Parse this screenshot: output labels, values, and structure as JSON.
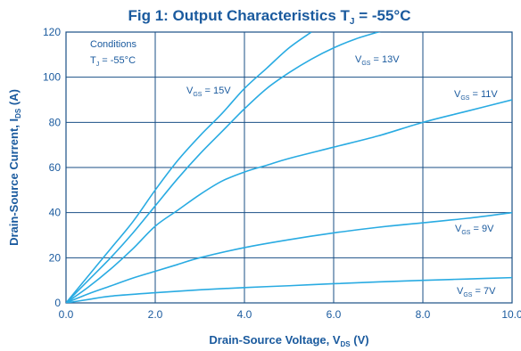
{
  "colors": {
    "title": "#1a5a9e",
    "grid": "#1a4f86",
    "curve": "#29abe2",
    "text": "#1a5a9e"
  },
  "chart_data": {
    "type": "line",
    "title": {
      "main": "Fig 1: Output Characteristics T",
      "sub": "J",
      "suffix": " = -55°C"
    },
    "xlabel": {
      "main": "Drain-Source Voltage, V",
      "sub": "DS",
      "suffix": " (V)"
    },
    "ylabel": {
      "main": "Drain-Source Current, I",
      "sub": "DS",
      "suffix": " (A)"
    },
    "xlim": [
      0,
      10
    ],
    "ylim": [
      0,
      120
    ],
    "x_ticks": [
      0,
      2,
      4,
      6,
      8,
      10
    ],
    "x_tick_labels": [
      "0.0",
      "2.0",
      "4.0",
      "6.0",
      "8.0",
      "10.0"
    ],
    "y_ticks": [
      0,
      20,
      40,
      60,
      80,
      100,
      120
    ],
    "y_tick_labels": [
      "0",
      "20",
      "40",
      "60",
      "80",
      "100",
      "120"
    ],
    "grid": true,
    "conditions": {
      "heading": "Conditions",
      "line": {
        "main": "T",
        "sub": "J",
        "suffix": " = -55°C"
      }
    },
    "series": [
      {
        "label": {
          "main": "V",
          "sub": "GS",
          "suffix": " = 15V"
        },
        "x": [
          0,
          0.5,
          1,
          1.5,
          2,
          2.5,
          3,
          3.5,
          4,
          4.5,
          5,
          5.5
        ],
        "y": [
          0,
          12,
          24,
          36,
          50,
          63,
          74,
          84,
          95,
          104,
          113,
          120
        ]
      },
      {
        "label": {
          "main": "V",
          "sub": "GS",
          "suffix": " = 13V"
        },
        "x": [
          0,
          0.5,
          1,
          1.5,
          2,
          2.5,
          3,
          3.5,
          4,
          4.5,
          5,
          5.5,
          6,
          6.5,
          7,
          7.2
        ],
        "y": [
          0,
          10,
          20,
          31,
          43,
          55,
          66,
          76,
          86,
          95,
          102,
          108,
          113,
          117,
          120,
          121
        ]
      },
      {
        "label": {
          "main": "V",
          "sub": "GS",
          "suffix": " = 11V"
        },
        "x": [
          0,
          0.5,
          1,
          1.5,
          2,
          2.5,
          3,
          3.5,
          4,
          4.5,
          5,
          6,
          7,
          8,
          9,
          10
        ],
        "y": [
          0,
          7,
          15,
          24,
          34,
          41,
          48,
          54,
          58,
          61,
          64,
          69,
          74,
          80,
          85,
          90
        ]
      },
      {
        "label": {
          "main": "V",
          "sub": "GS",
          "suffix": " = 9V"
        },
        "x": [
          0,
          0.5,
          1,
          1.5,
          2,
          2.5,
          3,
          4,
          5,
          6,
          7,
          8,
          9,
          10
        ],
        "y": [
          0,
          4,
          7.5,
          11,
          14,
          17,
          20,
          24.5,
          28,
          31,
          33.5,
          35.5,
          37.5,
          40
        ]
      },
      {
        "label": {
          "main": "V",
          "sub": "GS",
          "suffix": " = 7V"
        },
        "x": [
          0,
          0.5,
          1,
          2,
          3,
          4,
          5,
          6,
          7,
          8,
          9,
          10
        ],
        "y": [
          0,
          1.5,
          3,
          4.5,
          5.8,
          6.8,
          7.6,
          8.5,
          9.3,
          10,
          10.6,
          11.2
        ]
      }
    ]
  }
}
